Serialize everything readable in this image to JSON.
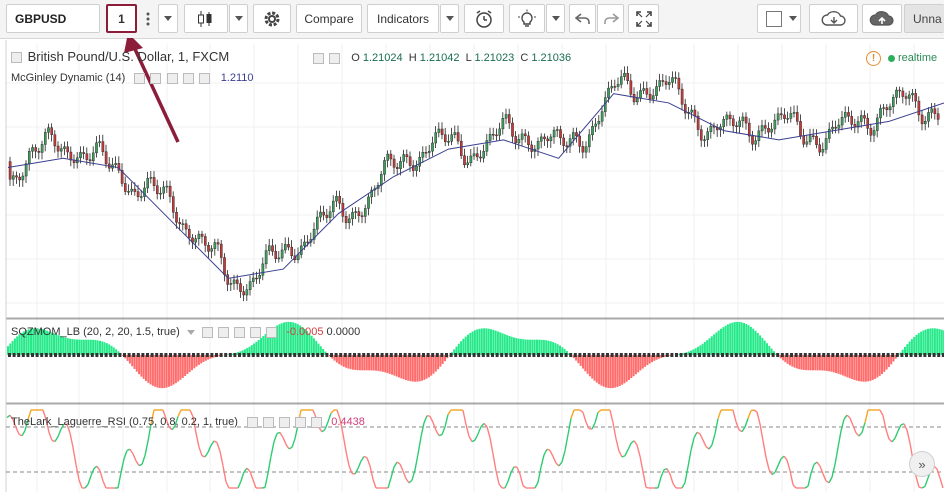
{
  "toolbar": {
    "symbol": "GBPUSD",
    "interval": "1",
    "compare_label": "Compare",
    "indicators_label": "Indicators",
    "tab_label": "Unna"
  },
  "main_pane": {
    "title": "British Pound/U.S. Dollar, 1, FXCM",
    "ohlc": {
      "o_label": "O",
      "o": "1.21024",
      "h_label": "H",
      "h": "1.21042",
      "l_label": "L",
      "l": "1.21023",
      "c_label": "C",
      "c": "1.21036"
    },
    "realtime_label": "realtime",
    "warn_glyph": "!",
    "indicator_name": "McGinley Dynamic (14)",
    "indicator_value": "1.2110"
  },
  "sqz_pane": {
    "name": "SQZMOM_LB (20, 2, 20, 1.5, true)",
    "value1": "-0.0005",
    "value2": "0.0000"
  },
  "rsi_pane": {
    "name": "TheLark_Laguerre_RSI (0.75, 0.8, 0.2, 1, true)",
    "value": "0.4438"
  },
  "scroll_glyph": "»",
  "colors": {
    "up": "#3e9c5a",
    "down": "#c23b3b",
    "ma_line": "#3a3f8f",
    "sqz_up": "#00e676",
    "sqz_down": "#ff5252",
    "rsi_up": "#2ecc71",
    "rsi_down": "#ff7f7f",
    "rsi_top": "#f5a623",
    "annotation": "#8c1d3a"
  },
  "chart_data": {
    "type": "line",
    "series": [
      {
        "name": "McGinley Dynamic (14)",
        "values": [
          1.2103,
          1.2104,
          1.2103,
          1.2097,
          1.2091,
          1.2092,
          1.2098,
          1.2102,
          1.2105,
          1.2106,
          1.2104,
          1.2111,
          1.211,
          1.2107,
          1.2106,
          1.2107,
          1.2108,
          1.211
        ]
      }
    ]
  }
}
